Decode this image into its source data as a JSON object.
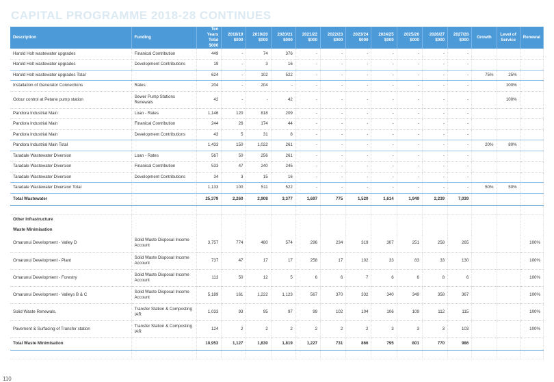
{
  "title": "CAPITAL PROGRAMME 2018-28 CONTINUES",
  "page_number": "110",
  "headers": {
    "description": "Description",
    "funding": "Funding",
    "ten_years": "Ten Years Total $000",
    "y1819": "2018/19 $000",
    "y1920": "2019/20 $000",
    "y2021": "2020/21 $000",
    "y2122": "2021/22 $000",
    "y2223": "2022/23 $000",
    "y2324": "2023/24 $000",
    "y2425": "2024/25 $000",
    "y2526": "2025/26 $000",
    "y2627": "2026/27 $000",
    "y2728": "2027/28 $000",
    "growth": "Growth",
    "level": "Level of Service",
    "renewal": "Renewal"
  },
  "rows": [
    {
      "type": "row",
      "cells": [
        "Harold Holt wastewater upgrades",
        "Finanical Contribution",
        "449",
        "-",
        "74",
        "376",
        "-",
        "-",
        "-",
        "-",
        "-",
        "-",
        "-",
        "",
        "",
        ""
      ]
    },
    {
      "type": "row",
      "cells": [
        "Harold Holt wastewater upgrades",
        "Development Contributions",
        "19",
        "-",
        "3",
        "16",
        "-",
        "-",
        "-",
        "-",
        "-",
        "-",
        "-",
        "",
        "",
        ""
      ]
    },
    {
      "type": "total",
      "cells": [
        "Harold Holt wastewater upgrades Total",
        "",
        "624",
        "-",
        "102",
        "522",
        "-",
        "-",
        "-",
        "-",
        "-",
        "-",
        "-",
        "75%",
        "25%",
        ""
      ]
    },
    {
      "type": "row",
      "cells": [
        "Installation of Generator Connections",
        "Rates",
        "204",
        "-",
        "204",
        "-",
        "-",
        "-",
        "-",
        "-",
        "-",
        "-",
        "-",
        "",
        "100%",
        ""
      ]
    },
    {
      "type": "row",
      "cells": [
        "Odour control at Petane pump station",
        "Sewer Pump Stations Renewals",
        "42",
        "-",
        "-",
        "42",
        "-",
        "-",
        "-",
        "-",
        "-",
        "-",
        "-",
        "",
        "100%",
        ""
      ]
    },
    {
      "type": "row",
      "cells": [
        "Pandora Industrial Main",
        "Loan - Rates",
        "1,146",
        "120",
        "818",
        "209",
        "-",
        "-",
        "-",
        "-",
        "-",
        "-",
        "-",
        "",
        "",
        ""
      ]
    },
    {
      "type": "row",
      "cells": [
        "Pandora Industrial Main",
        "Finanical Contribution",
        "244",
        "26",
        "174",
        "44",
        "-",
        "-",
        "-",
        "-",
        "-",
        "-",
        "-",
        "",
        "",
        ""
      ]
    },
    {
      "type": "row",
      "cells": [
        "Pandora Industrial Main",
        "Development Contributions",
        "43",
        "5",
        "31",
        "8",
        "-",
        "-",
        "-",
        "-",
        "-",
        "-",
        "-",
        "",
        "",
        ""
      ]
    },
    {
      "type": "total",
      "cells": [
        "Pandora Industrial Main Total",
        "",
        "1,433",
        "150",
        "1,022",
        "261",
        "-",
        "-",
        "-",
        "-",
        "-",
        "-",
        "-",
        "20%",
        "80%",
        ""
      ]
    },
    {
      "type": "row",
      "cells": [
        "Taradale Wastewater Diversion",
        "Loan - Rates",
        "567",
        "50",
        "256",
        "261",
        "-",
        "-",
        "-",
        "-",
        "-",
        "-",
        "-",
        "",
        "",
        ""
      ]
    },
    {
      "type": "row",
      "cells": [
        "Taradale Wastewater Diversion",
        "Finanical Contribution",
        "533",
        "47",
        "240",
        "245",
        "-",
        "-",
        "-",
        "-",
        "-",
        "-",
        "-",
        "",
        "",
        ""
      ]
    },
    {
      "type": "row",
      "cells": [
        "Taradale Wastewater Diversion",
        "Development Contributions",
        "34",
        "3",
        "15",
        "16",
        "-",
        "-",
        "-",
        "-",
        "-",
        "-",
        "-",
        "",
        "",
        ""
      ]
    },
    {
      "type": "total",
      "cells": [
        "Taradale Wastewater Diversion Total",
        "",
        "1,133",
        "100",
        "511",
        "522",
        "-",
        "-",
        "-",
        "-",
        "-",
        "-",
        "-",
        "50%",
        "50%",
        ""
      ]
    },
    {
      "type": "grand",
      "cells": [
        "Total Wastewater",
        "",
        "25,379",
        "2,260",
        "2,908",
        "3,377",
        "1,697",
        "775",
        "1,520",
        "1,614",
        "1,949",
        "2,239",
        "7,039",
        "",
        "",
        ""
      ]
    },
    {
      "type": "blank",
      "cells": [
        "",
        "",
        "",
        "",
        "",
        "",
        "",
        "",
        "",
        "",
        "",
        "",
        "",
        "",
        "",
        ""
      ]
    },
    {
      "type": "section",
      "cells": [
        "Other Infrastructure",
        "",
        "",
        "",
        "",
        "",
        "",
        "",
        "",
        "",
        "",
        "",
        "",
        "",
        "",
        ""
      ]
    },
    {
      "type": "section",
      "cells": [
        "Waste Minimisation",
        "",
        "",
        "",
        "",
        "",
        "",
        "",
        "",
        "",
        "",
        "",
        "",
        "",
        "",
        ""
      ]
    },
    {
      "type": "row",
      "cells": [
        "Omarunui Development - Valley D",
        "Solid Waste Disposal Income Account",
        "3,757",
        "774",
        "480",
        "574",
        "296",
        "234",
        "319",
        "307",
        "251",
        "258",
        "265",
        "",
        "",
        "100%"
      ]
    },
    {
      "type": "row",
      "cells": [
        "Omarunui Development - Plant",
        "Solid Waste Disposal Income Account",
        "737",
        "47",
        "17",
        "17",
        "258",
        "17",
        "102",
        "33",
        "83",
        "33",
        "130",
        "",
        "",
        "100%"
      ]
    },
    {
      "type": "row",
      "cells": [
        "Omarunui Development - Forestry",
        "Solid Waste Disposal Income Account",
        "113",
        "50",
        "12",
        "5",
        "6",
        "6",
        "7",
        "6",
        "6",
        "8",
        "6",
        "",
        "",
        "100%"
      ]
    },
    {
      "type": "row",
      "cells": [
        "Omarunui Development - Valleys B & C",
        "Solid Waste Disposal Income Account",
        "5,189",
        "161",
        "1,222",
        "1,123",
        "567",
        "370",
        "332",
        "340",
        "349",
        "358",
        "367",
        "",
        "",
        "100%"
      ]
    },
    {
      "type": "row",
      "cells": [
        "Solid Waste Renewals.",
        "Transfer Station & Composting IAR",
        "1,033",
        "93",
        "95",
        "97",
        "99",
        "102",
        "104",
        "106",
        "109",
        "112",
        "115",
        "",
        "",
        "100%"
      ]
    },
    {
      "type": "row",
      "cells": [
        "Pavement & Surfacing of Transfer station",
        "Transfer Station & Composting IAR",
        "124",
        "2",
        "2",
        "2",
        "2",
        "2",
        "2",
        "3",
        "3",
        "3",
        "103",
        "",
        "",
        "100%"
      ]
    },
    {
      "type": "grand",
      "cells": [
        "Total Waste Minimisation",
        "",
        "10,953",
        "1,127",
        "1,830",
        "1,819",
        "1,227",
        "731",
        "866",
        "795",
        "801",
        "770",
        "986",
        "",
        "",
        ""
      ]
    },
    {
      "type": "blank",
      "cells": [
        "",
        "",
        "",
        "",
        "",
        "",
        "",
        "",
        "",
        "",
        "",
        "",
        "",
        "",
        "",
        ""
      ]
    }
  ]
}
